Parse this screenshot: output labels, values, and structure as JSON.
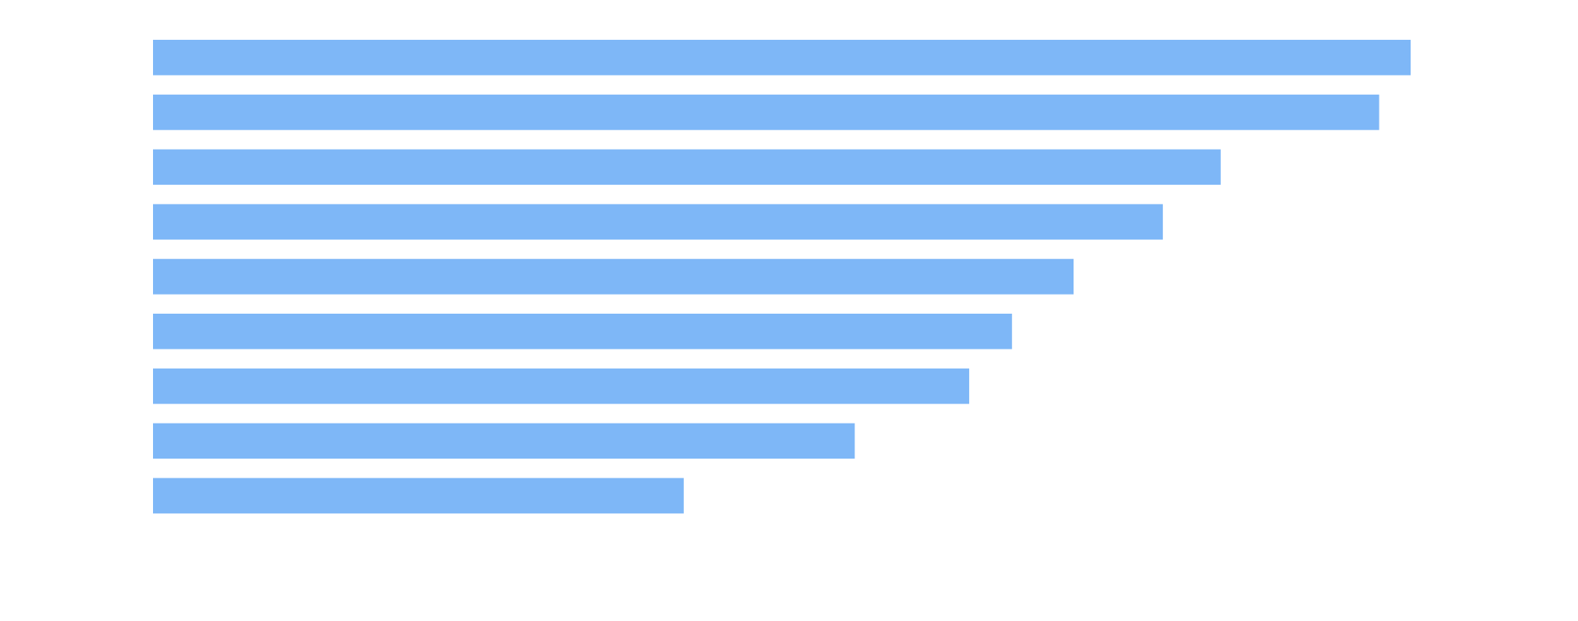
{
  "chart_data": {
    "type": "bar",
    "orientation": "horizontal",
    "categories": [
      "",
      "",
      "",
      "",
      "",
      "",
      "",
      "",
      ""
    ],
    "values": [
      100,
      97.5,
      84.9,
      80.3,
      73.2,
      68.3,
      64.9,
      55.8,
      42.2
    ],
    "xlim": [
      0,
      100
    ],
    "title": "",
    "xlabel": "",
    "ylabel": "",
    "grid": false,
    "legend": "none",
    "colors": {
      "bar": "#7EB7F7"
    }
  }
}
